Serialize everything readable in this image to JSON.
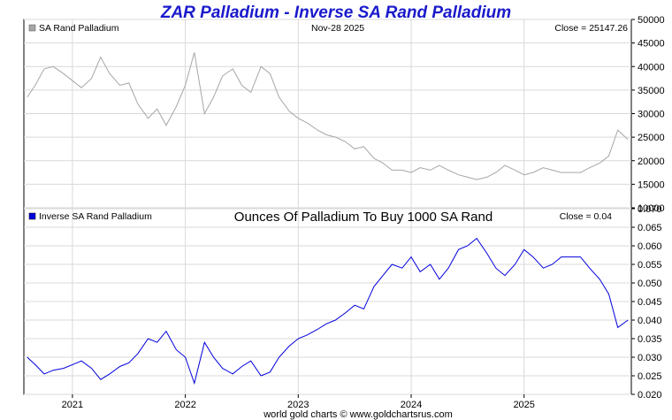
{
  "colors": {
    "title": "#1a1acc",
    "top_line": "#a6a6a6",
    "bottom_line": "#0000dd",
    "grid": "#d9d9d9",
    "axis": "#000000"
  },
  "chart_data": [
    {
      "type": "line",
      "title": "ZAR Palladium - Inverse SA Rand Palladium",
      "legend": "SA Rand Palladium",
      "date_label": "Nov-28  2025",
      "close_label": "Close = 25147.26",
      "ylim": [
        10000,
        50000
      ],
      "yticks": [
        "10000",
        "15000",
        "20000",
        "25000",
        "30000",
        "35000",
        "40000",
        "45000",
        "50000"
      ],
      "x": [
        2020.6,
        2020.67,
        2020.75,
        2020.83,
        2020.92,
        2021.0,
        2021.08,
        2021.17,
        2021.25,
        2021.33,
        2021.42,
        2021.5,
        2021.58,
        2021.67,
        2021.75,
        2021.83,
        2021.92,
        2022.0,
        2022.08,
        2022.17,
        2022.25,
        2022.33,
        2022.42,
        2022.5,
        2022.58,
        2022.67,
        2022.75,
        2022.83,
        2022.92,
        2023.0,
        2023.08,
        2023.17,
        2023.25,
        2023.33,
        2023.42,
        2023.5,
        2023.58,
        2023.67,
        2023.75,
        2023.83,
        2023.92,
        2024.0,
        2024.08,
        2024.17,
        2024.25,
        2024.33,
        2024.42,
        2024.5,
        2024.58,
        2024.67,
        2024.75,
        2024.83,
        2024.92,
        2025.0,
        2025.08,
        2025.17,
        2025.25,
        2025.33,
        2025.42,
        2025.5,
        2025.58,
        2025.67,
        2025.75,
        2025.83,
        2025.92
      ],
      "values": [
        33500,
        36000,
        39500,
        40000,
        38500,
        37000,
        35500,
        37500,
        42000,
        38500,
        36000,
        36500,
        32000,
        29000,
        31000,
        27500,
        31500,
        36000,
        43000,
        30000,
        33500,
        38000,
        39500,
        36000,
        34500,
        40000,
        38500,
        33500,
        30500,
        29000,
        28000,
        26500,
        25500,
        25000,
        24000,
        22500,
        23000,
        20500,
        19500,
        18000,
        18000,
        17500,
        18500,
        18000,
        19000,
        18000,
        17000,
        16500,
        16000,
        16500,
        17500,
        19000,
        18000,
        17000,
        17500,
        18500,
        18000,
        17500,
        17500,
        17500,
        18500,
        19500,
        21000,
        26500,
        24500
      ],
      "annotations": [
        "2021",
        "2022",
        "2023",
        "2024",
        "2025"
      ]
    },
    {
      "type": "line",
      "title": "Ounces Of Palladium To Buy 1000 SA Rand",
      "legend": "Inverse SA Rand Palladium",
      "close_label": "Close = 0.04",
      "ylim": [
        0.02,
        0.07
      ],
      "yticks": [
        "0.020",
        "0.025",
        "0.030",
        "0.035",
        "0.040",
        "0.045",
        "0.050",
        "0.055",
        "0.060",
        "0.065",
        "0.070"
      ],
      "x": [
        2020.6,
        2020.67,
        2020.75,
        2020.83,
        2020.92,
        2021.0,
        2021.08,
        2021.17,
        2021.25,
        2021.33,
        2021.42,
        2021.5,
        2021.58,
        2021.67,
        2021.75,
        2021.83,
        2021.92,
        2022.0,
        2022.08,
        2022.17,
        2022.25,
        2022.33,
        2022.42,
        2022.5,
        2022.58,
        2022.67,
        2022.75,
        2022.83,
        2022.92,
        2023.0,
        2023.08,
        2023.17,
        2023.25,
        2023.33,
        2023.42,
        2023.5,
        2023.58,
        2023.67,
        2023.75,
        2023.83,
        2023.92,
        2024.0,
        2024.08,
        2024.17,
        2024.25,
        2024.33,
        2024.42,
        2024.5,
        2024.58,
        2024.67,
        2024.75,
        2024.83,
        2024.92,
        2025.0,
        2025.08,
        2025.17,
        2025.25,
        2025.33,
        2025.42,
        2025.5,
        2025.58,
        2025.67,
        2025.75,
        2025.83,
        2025.92
      ],
      "values": [
        0.03,
        0.028,
        0.0255,
        0.0265,
        0.027,
        0.028,
        0.029,
        0.027,
        0.024,
        0.0255,
        0.0275,
        0.0285,
        0.031,
        0.035,
        0.034,
        0.037,
        0.032,
        0.03,
        0.023,
        0.034,
        0.03,
        0.027,
        0.0255,
        0.0275,
        0.029,
        0.025,
        0.026,
        0.03,
        0.033,
        0.035,
        0.036,
        0.0375,
        0.039,
        0.04,
        0.042,
        0.044,
        0.043,
        0.049,
        0.052,
        0.055,
        0.054,
        0.057,
        0.053,
        0.055,
        0.051,
        0.054,
        0.059,
        0.06,
        0.062,
        0.058,
        0.054,
        0.052,
        0.055,
        0.059,
        0.057,
        0.054,
        0.055,
        0.057,
        0.057,
        0.057,
        0.054,
        0.051,
        0.047,
        0.038,
        0.04
      ],
      "xlabel_ticks": [
        "2021",
        "2022",
        "2023",
        "2024",
        "2025"
      ],
      "x_tick_values": [
        2021.0,
        2022.0,
        2023.0,
        2024.0,
        2025.0
      ]
    }
  ],
  "footer": "world gold charts © www.goldchartsrus.com"
}
